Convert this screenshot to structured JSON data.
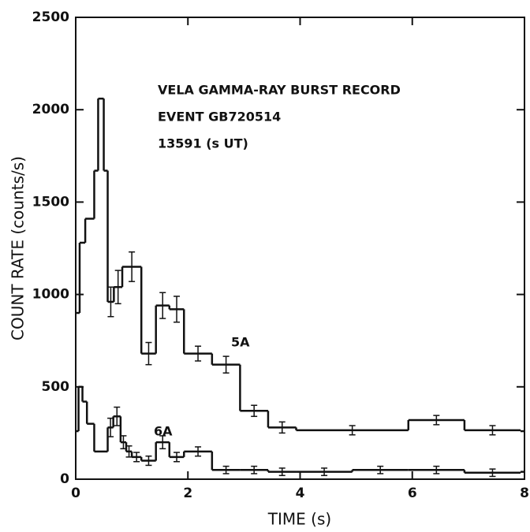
{
  "chart_data": {
    "type": "step",
    "annotations": [
      "VELA GAMMA-RAY BURST RECORD",
      "EVENT GB720514",
      "13591 (s UT)"
    ],
    "xlabel": "TIME (s)",
    "ylabel": "COUNT RATE (counts/s)",
    "xlim": [
      0,
      8
    ],
    "xticks": [
      0,
      2,
      4,
      6,
      8
    ],
    "ylim": [
      0,
      2500
    ],
    "yticks": [
      0,
      500,
      1000,
      1500,
      2000,
      2500
    ],
    "color": "#111111",
    "series": [
      {
        "name": "5A",
        "bins": [
          0,
          0.07,
          0.17,
          0.33,
          0.4,
          0.5,
          0.57,
          0.68,
          0.83,
          1.17,
          1.43,
          1.67,
          1.93,
          2.43,
          2.93,
          3.43,
          3.93,
          5.93,
          6.93,
          7.93,
          8
        ],
        "values": [
          900,
          1280,
          1410,
          1670,
          2060,
          1670,
          960,
          1040,
          1150,
          680,
          940,
          920,
          680,
          620,
          370,
          280,
          265,
          320,
          265,
          260
        ],
        "errors": [
          null,
          null,
          null,
          null,
          null,
          null,
          80,
          90,
          80,
          60,
          70,
          70,
          40,
          45,
          30,
          30,
          25,
          25,
          25,
          null
        ]
      },
      {
        "name": "6A",
        "bins": [
          0,
          0.05,
          0.12,
          0.2,
          0.33,
          0.57,
          0.67,
          0.8,
          0.9,
          1.0,
          1.17,
          1.43,
          1.67,
          1.93,
          2.43,
          2.93,
          3.43,
          3.93,
          4.93,
          5.93,
          6.93,
          7.93,
          8
        ],
        "values": [
          260,
          500,
          420,
          300,
          150,
          280,
          340,
          200,
          150,
          120,
          100,
          200,
          120,
          150,
          50,
          50,
          40,
          40,
          50,
          50,
          35,
          40
        ],
        "errors": [
          null,
          null,
          null,
          null,
          null,
          50,
          50,
          35,
          30,
          25,
          25,
          35,
          25,
          25,
          20,
          20,
          20,
          20,
          20,
          20,
          20,
          null
        ]
      }
    ]
  }
}
